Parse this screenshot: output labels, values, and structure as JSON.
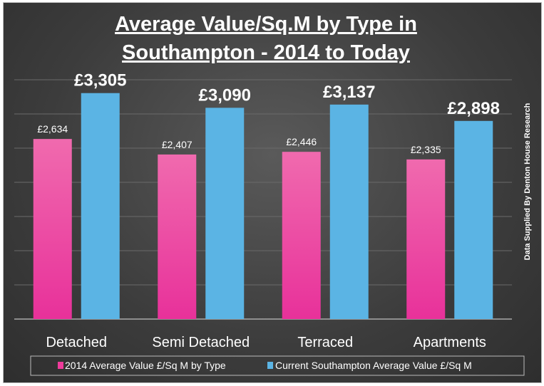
{
  "chart_data": {
    "type": "bar",
    "title_line1": "Average Value/Sq.M by Type in",
    "title_line2": "Southampton - 2014 to Today",
    "categories": [
      "Detached",
      "Semi Detached",
      "Terraced",
      "Apartments"
    ],
    "series": [
      {
        "name": "2014 Average Value £/Sq M by Type",
        "values": [
          2634,
          2407,
          2446,
          2335
        ],
        "labels": [
          "£2,634",
          "£2,407",
          "£2,446",
          "£2,335"
        ],
        "color": "#ee3b9b"
      },
      {
        "name": "Current Southampton Average Value £/Sq M",
        "values": [
          3305,
          3090,
          3137,
          2898
        ],
        "labels": [
          "£3,305",
          "£3,090",
          "£3,137",
          "£2,898"
        ],
        "color": "#5bb4e4"
      }
    ],
    "ylim": [
      0,
      3500
    ],
    "ytick_step": 500,
    "grid": true,
    "legend_placement": "bottom",
    "side_note": "Data Supplied By Denton House Research"
  }
}
